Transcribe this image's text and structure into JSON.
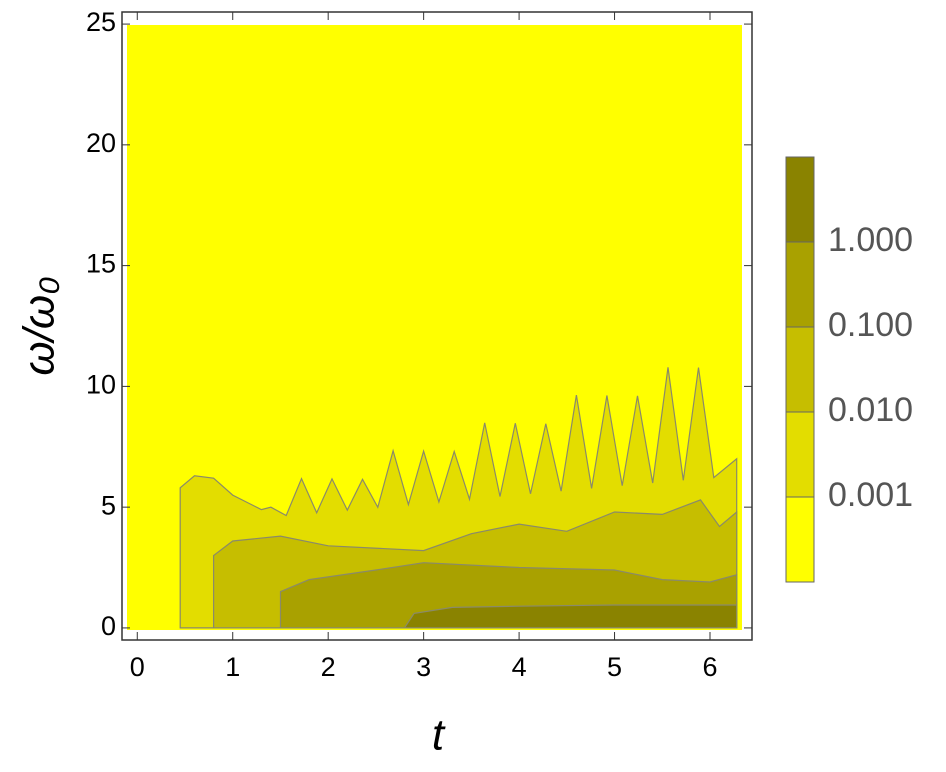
{
  "chart_data": {
    "type": "contour",
    "x_label": "t",
    "y_label": "ω/ω₀",
    "xlim": [
      -0.16,
      6.44
    ],
    "ylim": [
      -0.5,
      25.5
    ],
    "xticks": [
      0,
      1,
      2,
      3,
      4,
      5,
      6
    ],
    "yticks": [
      0,
      5,
      10,
      15,
      20,
      25
    ],
    "colorbar": {
      "scale": "log",
      "lim": [
        0.0001,
        10
      ],
      "ticks": [
        {
          "value": 0.001,
          "label": "0.001"
        },
        {
          "value": 0.01,
          "label": "0.010"
        },
        {
          "value": 0.1,
          "label": "0.100"
        },
        {
          "value": 1,
          "label": "1.000"
        }
      ],
      "colors": [
        "#ffff00",
        "#e3dd00",
        "#c6be00",
        "#a9a100",
        "#8a8300"
      ]
    }
  }
}
